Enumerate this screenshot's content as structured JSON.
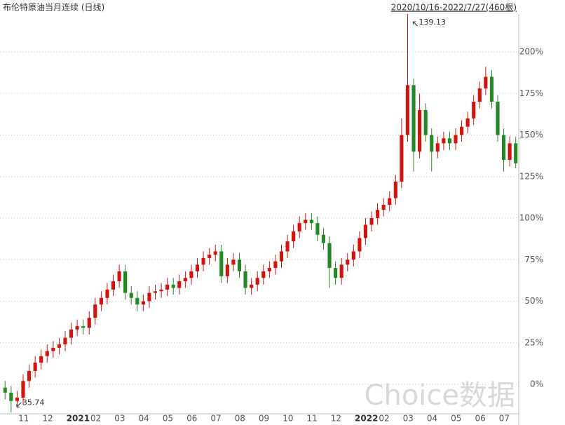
{
  "chart_data": {
    "type": "candlestick",
    "title": "布伦特原油当月连续 (日线)",
    "subtitle": "2020/10/16-2022/7/27(460根)",
    "watermark": "Choice数据",
    "annotations": [
      {
        "text": "139.13"
      },
      {
        "text": "35.74"
      }
    ],
    "categories": [
      null,
      null,
      "11",
      null,
      null,
      null,
      "12",
      null,
      null,
      null,
      "2021",
      null,
      null,
      null,
      "02",
      null,
      null,
      null,
      "03",
      null,
      null,
      null,
      "04",
      null,
      null,
      null,
      "05",
      null,
      null,
      null,
      "06",
      null,
      null,
      null,
      "07",
      null,
      null,
      null,
      "08",
      null,
      null,
      null,
      "09",
      null,
      null,
      null,
      "10",
      null,
      null,
      null,
      "11",
      null,
      null,
      null,
      "12",
      null,
      null,
      null,
      "2022",
      null,
      null,
      null,
      "02",
      null,
      null,
      null,
      "03",
      null,
      null,
      null,
      "04",
      null,
      null,
      null,
      "05",
      null,
      null,
      null,
      "06",
      null,
      null,
      null,
      "07",
      null,
      null,
      null
    ],
    "open": [
      -2,
      -5,
      -10,
      -8,
      2,
      8,
      13,
      17,
      20,
      22,
      24,
      28,
      33,
      35,
      34,
      40,
      48,
      52,
      57,
      62,
      68,
      55,
      52,
      48,
      50,
      55,
      56,
      57,
      60,
      58,
      62,
      64,
      68,
      72,
      76,
      78,
      80,
      65,
      72,
      75,
      68,
      58,
      60,
      64,
      68,
      70,
      74,
      80,
      86,
      92,
      97,
      99,
      97,
      90,
      85,
      70,
      64,
      72,
      75,
      80,
      88,
      96,
      100,
      105,
      108,
      112,
      122,
      150,
      180,
      140,
      165,
      150,
      140,
      145,
      148,
      145,
      150,
      155,
      160,
      170,
      178,
      185,
      170,
      150,
      135,
      145
    ],
    "high": [
      2,
      -1,
      -4,
      6,
      12,
      17,
      21,
      24,
      26,
      28,
      32,
      37,
      39,
      39,
      44,
      52,
      56,
      61,
      66,
      72,
      72,
      59,
      56,
      54,
      59,
      60,
      61,
      64,
      64,
      66,
      68,
      72,
      76,
      80,
      82,
      84,
      84,
      76,
      79,
      79,
      72,
      64,
      68,
      72,
      74,
      78,
      84,
      90,
      96,
      101,
      103,
      103,
      101,
      94,
      89,
      74,
      76,
      79,
      84,
      92,
      100,
      104,
      109,
      112,
      116,
      126,
      160,
      222.8,
      184,
      175,
      169,
      154,
      149,
      152,
      152,
      154,
      159,
      164,
      174,
      182,
      191,
      189,
      174,
      154,
      149,
      149
    ],
    "low": [
      -9,
      -17,
      -14,
      -12,
      -2,
      4,
      9,
      13,
      16,
      18,
      20,
      24,
      29,
      30,
      30,
      36,
      44,
      48,
      53,
      58,
      51,
      48,
      44,
      44,
      46,
      51,
      52,
      53,
      54,
      54,
      58,
      60,
      64,
      68,
      72,
      74,
      61,
      61,
      68,
      64,
      54,
      54,
      56,
      60,
      64,
      66,
      70,
      76,
      82,
      88,
      93,
      93,
      86,
      81,
      58,
      60,
      60,
      68,
      71,
      76,
      84,
      92,
      96,
      101,
      104,
      108,
      118,
      146,
      128,
      136,
      146,
      128,
      136,
      141,
      141,
      141,
      146,
      151,
      156,
      166,
      174,
      166,
      146,
      128,
      131,
      130
    ],
    "close": [
      -5,
      -10,
      -8,
      2,
      8,
      13,
      17,
      20,
      22,
      24,
      28,
      33,
      35,
      34,
      40,
      48,
      52,
      57,
      62,
      68,
      55,
      52,
      48,
      50,
      55,
      56,
      57,
      60,
      58,
      62,
      64,
      68,
      72,
      76,
      78,
      80,
      65,
      72,
      75,
      68,
      58,
      60,
      64,
      68,
      70,
      74,
      80,
      86,
      92,
      97,
      99,
      97,
      90,
      85,
      70,
      64,
      72,
      75,
      80,
      88,
      96,
      100,
      105,
      108,
      112,
      122,
      150,
      180,
      140,
      165,
      150,
      140,
      145,
      148,
      145,
      150,
      155,
      160,
      170,
      178,
      185,
      170,
      150,
      135,
      145,
      133
    ],
    "up_color": "#d2140f",
    "down_color": "#238a23",
    "ylim": [
      -20,
      230
    ],
    "yticks": [
      {
        "value": 0,
        "label": "0%"
      },
      {
        "value": 25,
        "label": "25%"
      },
      {
        "value": 50,
        "label": "50%"
      },
      {
        "value": 75,
        "label": "75%"
      },
      {
        "value": 100,
        "label": "100%"
      },
      {
        "value": 125,
        "label": "125%"
      },
      {
        "value": 150,
        "label": "150%"
      },
      {
        "value": 175,
        "label": "175%"
      },
      {
        "value": 200,
        "label": "200%"
      }
    ],
    "grid": true
  }
}
